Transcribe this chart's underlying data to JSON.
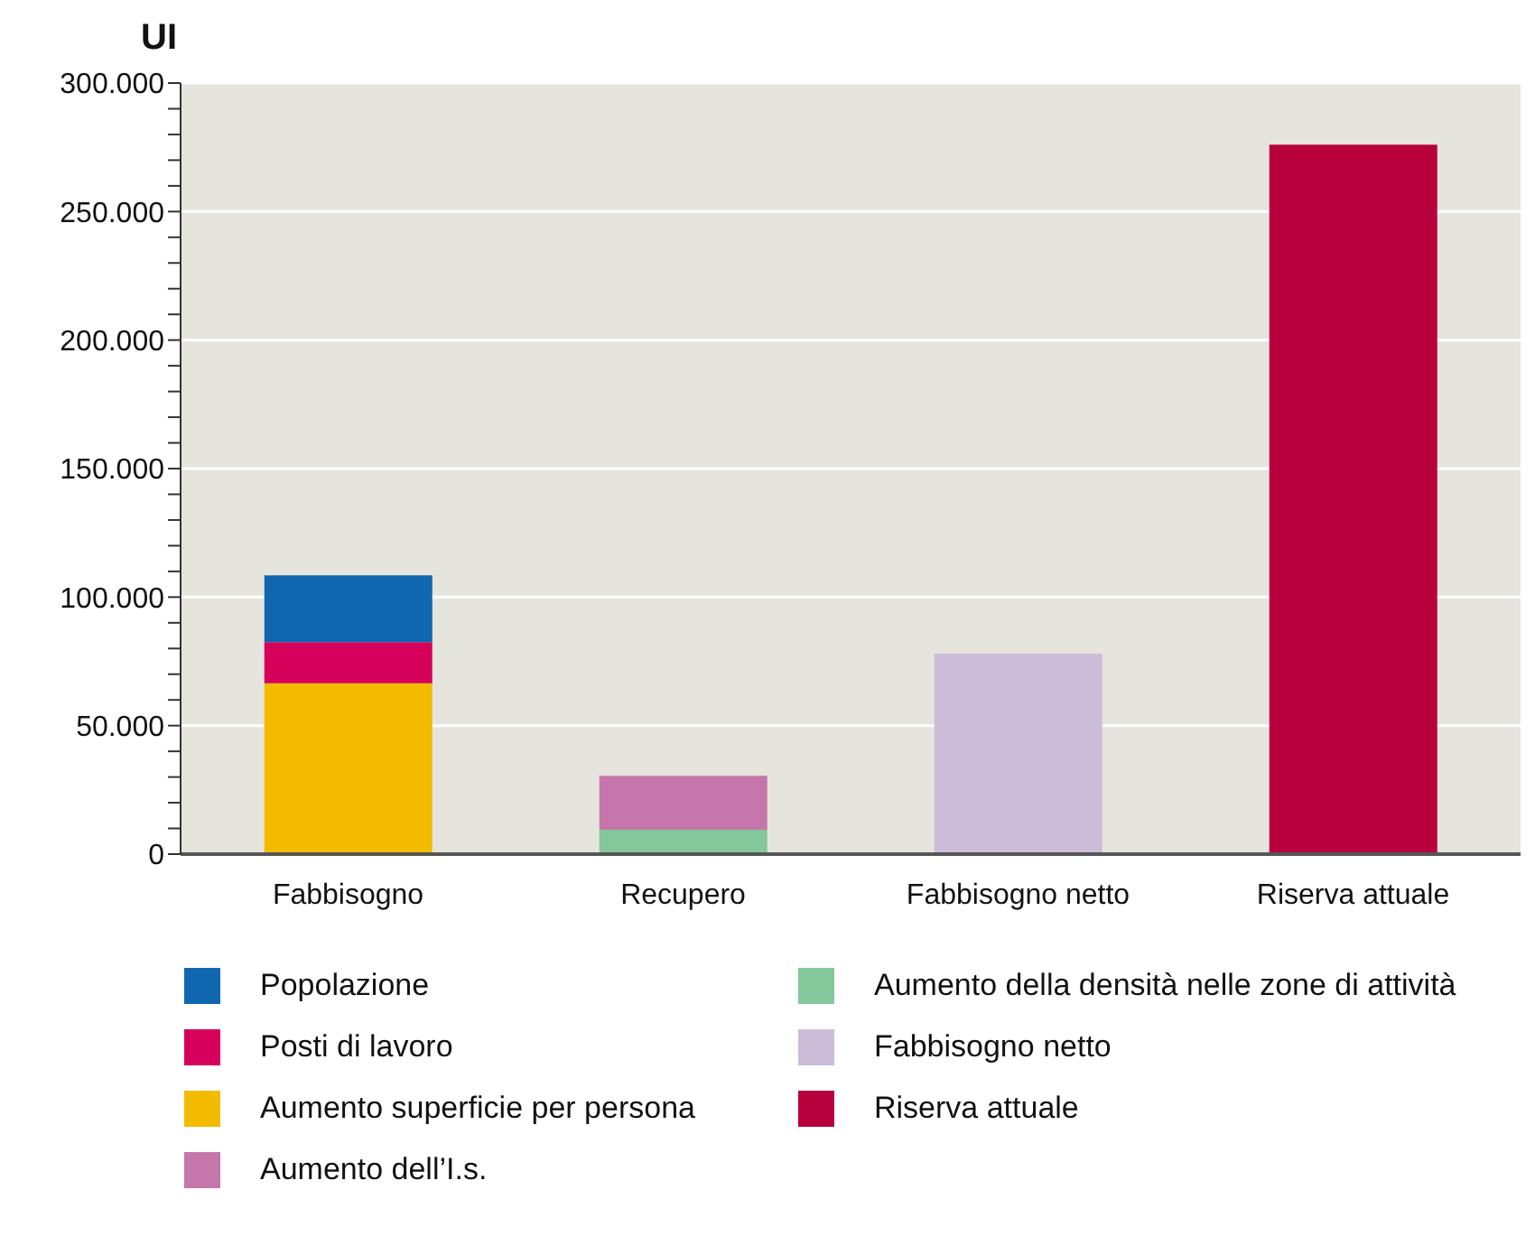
{
  "chart_data": {
    "type": "bar",
    "ylabel": "UI",
    "stacked": true,
    "categories": [
      "Fabbisogno",
      "Recupero",
      "Fabbisogno netto",
      "Riserva attuale"
    ],
    "series": [
      {
        "name": "Aumento superficie per persona",
        "color": "#f3bb00",
        "values": [
          66500,
          null,
          null,
          null
        ]
      },
      {
        "name": "Posti di lavoro",
        "color": "#d5005a",
        "values": [
          16000,
          null,
          null,
          null
        ]
      },
      {
        "name": "Popolazione",
        "color": "#1166b0",
        "values": [
          26000,
          null,
          null,
          null
        ]
      },
      {
        "name": "Aumento della densità nelle zone di attività",
        "color": "#83c79a",
        "values": [
          null,
          9500,
          null,
          null
        ]
      },
      {
        "name": "Aumento dell’I.s.",
        "color": "#c576ab",
        "values": [
          null,
          21000,
          null,
          null
        ]
      },
      {
        "name": "Fabbisogno netto",
        "color": "#cbbcd8",
        "values": [
          null,
          null,
          78000,
          null
        ]
      },
      {
        "name": "Riserva attuale",
        "color": "#b8003f",
        "values": [
          null,
          null,
          null,
          276000
        ]
      }
    ],
    "ylim": [
      0,
      300000
    ],
    "yticks": [
      {
        "value": 0,
        "label": "0"
      },
      {
        "value": 10000,
        "label": null
      },
      {
        "value": 20000,
        "label": null
      },
      {
        "value": 30000,
        "label": null
      },
      {
        "value": 40000,
        "label": null
      },
      {
        "value": 50000,
        "label": "50.000"
      },
      {
        "value": 60000,
        "label": null
      },
      {
        "value": 70000,
        "label": null
      },
      {
        "value": 80000,
        "label": null
      },
      {
        "value": 90000,
        "label": null
      },
      {
        "value": 100000,
        "label": "100.000"
      },
      {
        "value": 110000,
        "label": null
      },
      {
        "value": 120000,
        "label": null
      },
      {
        "value": 130000,
        "label": null
      },
      {
        "value": 140000,
        "label": null
      },
      {
        "value": 150000,
        "label": "150.000"
      },
      {
        "value": 160000,
        "label": null
      },
      {
        "value": 170000,
        "label": null
      },
      {
        "value": 180000,
        "label": null
      },
      {
        "value": 190000,
        "label": null
      },
      {
        "value": 200000,
        "label": "200.000"
      },
      {
        "value": 210000,
        "label": null
      },
      {
        "value": 220000,
        "label": null
      },
      {
        "value": 230000,
        "label": null
      },
      {
        "value": 240000,
        "label": null
      },
      {
        "value": 250000,
        "label": "250.000"
      },
      {
        "value": 260000,
        "label": null
      },
      {
        "value": 270000,
        "label": null
      },
      {
        "value": 280000,
        "label": null
      },
      {
        "value": 290000,
        "label": null
      },
      {
        "value": 300000,
        "label": "300.000"
      }
    ],
    "grid": "y",
    "legend": "bottom"
  }
}
